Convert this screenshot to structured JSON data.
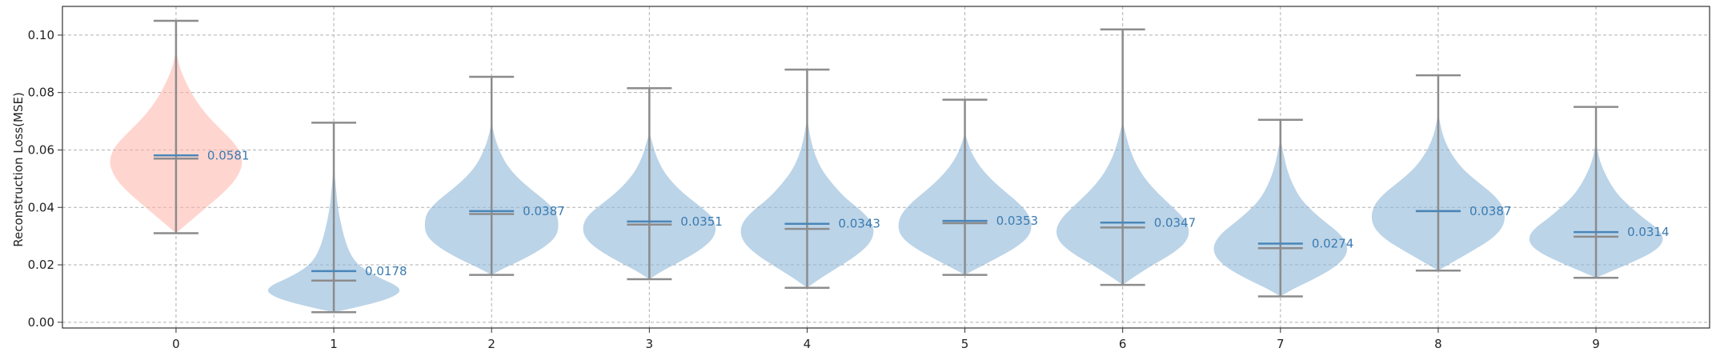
{
  "chart_data": {
    "type": "violin",
    "title": "",
    "xlabel": "",
    "ylabel": "Reconstruction Loss(MSE)",
    "ylim": [
      -0.002,
      0.11
    ],
    "xlim": [
      -0.72,
      9.72
    ],
    "yticks": [
      "0.00",
      "0.02",
      "0.04",
      "0.06",
      "0.08",
      "0.10"
    ],
    "categories": [
      "0",
      "1",
      "2",
      "3",
      "4",
      "5",
      "6",
      "7",
      "8",
      "9"
    ],
    "grid": true,
    "highlight_category": "0",
    "colors": {
      "default_body": "#8fb8d8",
      "highlight_body": "#ffb2aa",
      "whisker": "#8c8c8c",
      "mean_line": "#4a86b8",
      "label": "#3a7bb0",
      "grid": "#b0b0b0",
      "axes": "#333333"
    },
    "series": [
      {
        "category": "0",
        "min": 0.031,
        "max": 0.105,
        "median": 0.057,
        "mean": 0.0581,
        "mean_label": "0.0581",
        "profile": [
          [
            0.031,
            0.0
          ],
          [
            0.034,
            0.15
          ],
          [
            0.037,
            0.3
          ],
          [
            0.041,
            0.5
          ],
          [
            0.046,
            0.75
          ],
          [
            0.051,
            0.93
          ],
          [
            0.056,
            1.0
          ],
          [
            0.061,
            0.92
          ],
          [
            0.066,
            0.72
          ],
          [
            0.071,
            0.5
          ],
          [
            0.076,
            0.33
          ],
          [
            0.081,
            0.2
          ],
          [
            0.086,
            0.1
          ],
          [
            0.09,
            0.04
          ],
          [
            0.095,
            0.0
          ]
        ]
      },
      {
        "category": "1",
        "min": 0.0035,
        "max": 0.0695,
        "median": 0.0145,
        "mean": 0.0178,
        "mean_label": "0.0178",
        "profile": [
          [
            0.0035,
            0.0
          ],
          [
            0.005,
            0.3
          ],
          [
            0.007,
            0.65
          ],
          [
            0.009,
            0.9
          ],
          [
            0.011,
            1.0
          ],
          [
            0.013,
            0.92
          ],
          [
            0.015,
            0.72
          ],
          [
            0.018,
            0.48
          ],
          [
            0.021,
            0.32
          ],
          [
            0.025,
            0.22
          ],
          [
            0.03,
            0.15
          ],
          [
            0.035,
            0.1
          ],
          [
            0.04,
            0.06
          ],
          [
            0.047,
            0.03
          ],
          [
            0.055,
            0.0
          ]
        ]
      },
      {
        "category": "2",
        "min": 0.0165,
        "max": 0.0855,
        "median": 0.0377,
        "mean": 0.0387,
        "mean_label": "0.0387",
        "profile": [
          [
            0.0165,
            0.0
          ],
          [
            0.019,
            0.2
          ],
          [
            0.022,
            0.48
          ],
          [
            0.026,
            0.78
          ],
          [
            0.03,
            0.97
          ],
          [
            0.034,
            1.0
          ],
          [
            0.038,
            0.97
          ],
          [
            0.042,
            0.82
          ],
          [
            0.046,
            0.6
          ],
          [
            0.05,
            0.4
          ],
          [
            0.054,
            0.25
          ],
          [
            0.058,
            0.15
          ],
          [
            0.062,
            0.08
          ],
          [
            0.066,
            0.03
          ],
          [
            0.07,
            0.0
          ]
        ]
      },
      {
        "category": "3",
        "min": 0.015,
        "max": 0.0815,
        "median": 0.034,
        "mean": 0.0351,
        "mean_label": "0.0351",
        "profile": [
          [
            0.015,
            0.0
          ],
          [
            0.018,
            0.2
          ],
          [
            0.021,
            0.45
          ],
          [
            0.025,
            0.75
          ],
          [
            0.029,
            0.95
          ],
          [
            0.033,
            1.0
          ],
          [
            0.037,
            0.93
          ],
          [
            0.041,
            0.72
          ],
          [
            0.045,
            0.5
          ],
          [
            0.049,
            0.33
          ],
          [
            0.053,
            0.2
          ],
          [
            0.058,
            0.1
          ],
          [
            0.062,
            0.05
          ],
          [
            0.066,
            0.0
          ]
        ]
      },
      {
        "category": "4",
        "min": 0.012,
        "max": 0.088,
        "median": 0.0325,
        "mean": 0.0343,
        "mean_label": "0.0343",
        "profile": [
          [
            0.012,
            0.0
          ],
          [
            0.015,
            0.18
          ],
          [
            0.019,
            0.45
          ],
          [
            0.023,
            0.72
          ],
          [
            0.027,
            0.92
          ],
          [
            0.031,
            1.0
          ],
          [
            0.035,
            0.96
          ],
          [
            0.039,
            0.8
          ],
          [
            0.043,
            0.58
          ],
          [
            0.048,
            0.38
          ],
          [
            0.053,
            0.22
          ],
          [
            0.058,
            0.12
          ],
          [
            0.063,
            0.06
          ],
          [
            0.068,
            0.02
          ],
          [
            0.072,
            0.0
          ]
        ]
      },
      {
        "category": "5",
        "min": 0.0165,
        "max": 0.0775,
        "median": 0.0345,
        "mean": 0.0353,
        "mean_label": "0.0353",
        "profile": [
          [
            0.0165,
            0.0
          ],
          [
            0.019,
            0.2
          ],
          [
            0.022,
            0.45
          ],
          [
            0.026,
            0.76
          ],
          [
            0.03,
            0.96
          ],
          [
            0.034,
            1.0
          ],
          [
            0.038,
            0.94
          ],
          [
            0.042,
            0.78
          ],
          [
            0.046,
            0.57
          ],
          [
            0.05,
            0.38
          ],
          [
            0.054,
            0.23
          ],
          [
            0.058,
            0.12
          ],
          [
            0.062,
            0.05
          ],
          [
            0.066,
            0.0
          ]
        ]
      },
      {
        "category": "6",
        "min": 0.013,
        "max": 0.102,
        "median": 0.033,
        "mean": 0.0347,
        "mean_label": "0.0347",
        "profile": [
          [
            0.013,
            0.0
          ],
          [
            0.016,
            0.18
          ],
          [
            0.02,
            0.45
          ],
          [
            0.024,
            0.75
          ],
          [
            0.028,
            0.95
          ],
          [
            0.032,
            1.0
          ],
          [
            0.036,
            0.92
          ],
          [
            0.04,
            0.75
          ],
          [
            0.045,
            0.52
          ],
          [
            0.05,
            0.33
          ],
          [
            0.055,
            0.2
          ],
          [
            0.06,
            0.11
          ],
          [
            0.065,
            0.05
          ],
          [
            0.07,
            0.0
          ]
        ]
      },
      {
        "category": "7",
        "min": 0.009,
        "max": 0.0705,
        "median": 0.0258,
        "mean": 0.0274,
        "mean_label": "0.0274",
        "profile": [
          [
            0.009,
            0.0
          ],
          [
            0.012,
            0.22
          ],
          [
            0.015,
            0.5
          ],
          [
            0.019,
            0.8
          ],
          [
            0.023,
            0.98
          ],
          [
            0.027,
            1.0
          ],
          [
            0.031,
            0.88
          ],
          [
            0.035,
            0.66
          ],
          [
            0.039,
            0.46
          ],
          [
            0.043,
            0.3
          ],
          [
            0.048,
            0.18
          ],
          [
            0.053,
            0.1
          ],
          [
            0.058,
            0.05
          ],
          [
            0.064,
            0.0
          ]
        ]
      },
      {
        "category": "8",
        "min": 0.018,
        "max": 0.086,
        "median": 0.0387,
        "mean": 0.0387,
        "mean_label": "0.0387",
        "profile": [
          [
            0.018,
            0.0
          ],
          [
            0.021,
            0.22
          ],
          [
            0.025,
            0.52
          ],
          [
            0.029,
            0.8
          ],
          [
            0.033,
            0.96
          ],
          [
            0.037,
            1.0
          ],
          [
            0.041,
            0.95
          ],
          [
            0.045,
            0.8
          ],
          [
            0.049,
            0.58
          ],
          [
            0.053,
            0.38
          ],
          [
            0.057,
            0.24
          ],
          [
            0.061,
            0.14
          ],
          [
            0.065,
            0.07
          ],
          [
            0.069,
            0.03
          ],
          [
            0.073,
            0.0
          ]
        ]
      },
      {
        "category": "9",
        "min": 0.0155,
        "max": 0.075,
        "median": 0.0298,
        "mean": 0.0314,
        "mean_label": "0.0314",
        "profile": [
          [
            0.0155,
            0.0
          ],
          [
            0.018,
            0.25
          ],
          [
            0.021,
            0.55
          ],
          [
            0.024,
            0.82
          ],
          [
            0.027,
            0.98
          ],
          [
            0.03,
            1.0
          ],
          [
            0.033,
            0.9
          ],
          [
            0.036,
            0.72
          ],
          [
            0.04,
            0.52
          ],
          [
            0.044,
            0.34
          ],
          [
            0.048,
            0.22
          ],
          [
            0.052,
            0.13
          ],
          [
            0.056,
            0.06
          ],
          [
            0.06,
            0.02
          ],
          [
            0.064,
            0.0
          ]
        ]
      }
    ]
  }
}
